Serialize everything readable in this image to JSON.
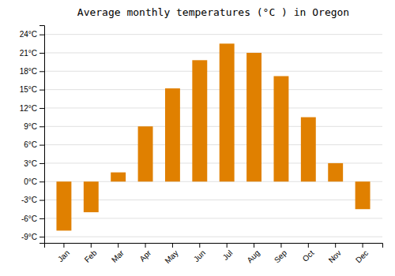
{
  "chart_data": {
    "type": "bar",
    "title": "Average monthly temperatures (°C ) in Oregon",
    "categories": [
      "Jan",
      "Feb",
      "Mar",
      "Apr",
      "May",
      "Jun",
      "Jul",
      "Aug",
      "Sep",
      "Oct",
      "Nov",
      "Dec"
    ],
    "values": [
      -8,
      -5,
      1.5,
      9,
      15.2,
      19.8,
      22.5,
      21,
      17.2,
      10.5,
      3,
      -4.5
    ],
    "color": "#E08000",
    "ylim": [
      -10,
      25.5
    ],
    "yticks": [
      {
        "value": -9,
        "label": "-9°C"
      },
      {
        "value": -6,
        "label": "-6°C"
      },
      {
        "value": -3,
        "label": "-3°C"
      },
      {
        "value": 0,
        "label": "0°C"
      },
      {
        "value": 3,
        "label": "3°C"
      },
      {
        "value": 6,
        "label": "6°C"
      },
      {
        "value": 9,
        "label": "9°C"
      },
      {
        "value": 12,
        "label": "12°C"
      },
      {
        "value": 15,
        "label": "15°C"
      },
      {
        "value": 18,
        "label": "18°C"
      },
      {
        "value": 21,
        "label": "21°C"
      },
      {
        "value": 24,
        "label": "24°C"
      }
    ],
    "grid": true
  }
}
